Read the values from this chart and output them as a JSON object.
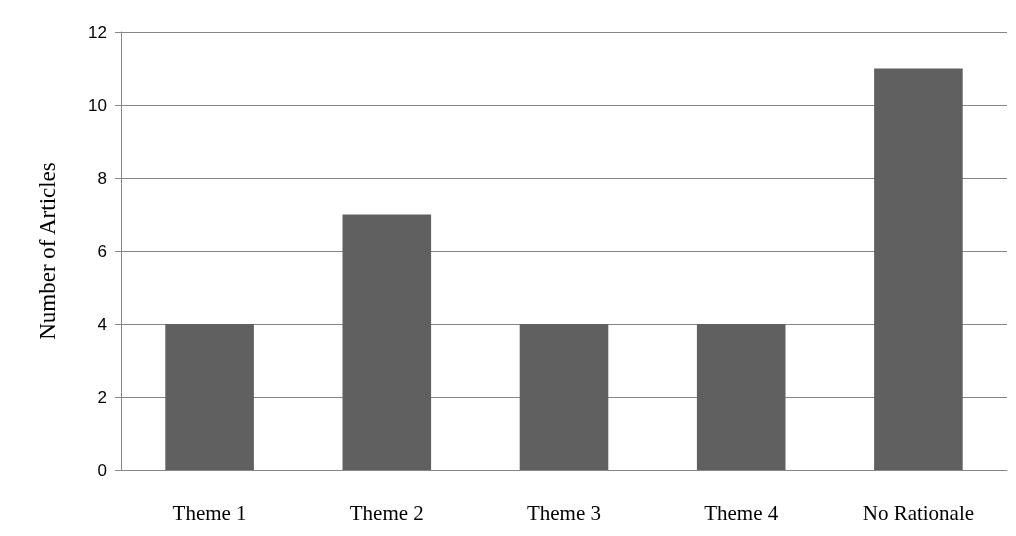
{
  "chart_data": {
    "type": "bar",
    "ylabel": "Number of Articles",
    "categories": [
      "Theme 1",
      "Theme 2",
      "Theme 3",
      "Theme 4",
      "No Rationale"
    ],
    "values": [
      4,
      7,
      4,
      4,
      11
    ],
    "color": "#606060",
    "ylim": [
      0,
      12
    ],
    "yticks": [
      0,
      2,
      4,
      6,
      8,
      10,
      12
    ],
    "grid": "y"
  }
}
